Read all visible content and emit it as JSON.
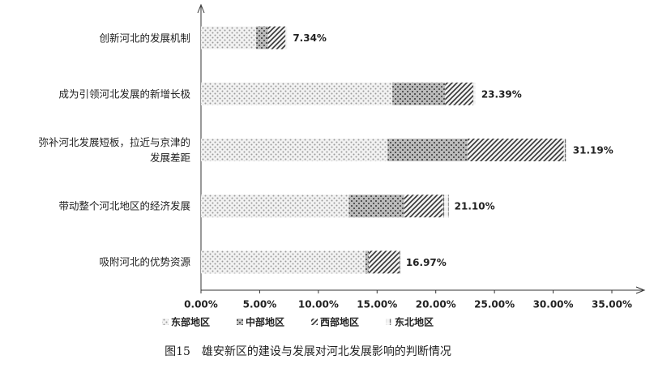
{
  "chart_data": {
    "type": "stacked_barh",
    "caption": "图15　雄安新区的建设与发展对河北发展影响的判断情况",
    "categories": [
      "创新河北的发展机制",
      "成为引领河北发展的新增长极",
      "弥补河北发展短板，拉近与京津的\n发展差距",
      "带动整个河北地区的经济发展",
      "吸附河北的优势资源"
    ],
    "series": [
      {
        "name": "东部地区",
        "color": "#9a9a9a",
        "pattern": "dots",
        "values": [
          4.7,
          16.3,
          15.9,
          12.6,
          14.0
        ]
      },
      {
        "name": "中部地区",
        "color": "#555555",
        "pattern": "grid",
        "values": [
          1.0,
          4.5,
          6.8,
          4.7,
          0.3
        ]
      },
      {
        "name": "西部地区",
        "color": "#333333",
        "pattern": "diagonal",
        "values": [
          1.5,
          2.4,
          8.2,
          3.3,
          2.6
        ]
      },
      {
        "name": "东北地区",
        "color": "#666666",
        "pattern": "vlines",
        "values": [
          0.14,
          0.19,
          0.29,
          0.5,
          0.07
        ]
      }
    ],
    "totals": [
      7.34,
      23.39,
      31.19,
      21.1,
      16.97
    ],
    "total_labels": [
      "7.34%",
      "23.39%",
      "31.19%",
      "21.10%",
      "16.97%"
    ],
    "xlim": [
      0,
      35
    ],
    "xticks": [
      {
        "value": 0,
        "label": "0.00%"
      },
      {
        "value": 5,
        "label": "5.00%"
      },
      {
        "value": 10,
        "label": "10.00%"
      },
      {
        "value": 15,
        "label": "15.00%"
      },
      {
        "value": 20,
        "label": "20.00%"
      },
      {
        "value": 25,
        "label": "25.00%"
      },
      {
        "value": 30,
        "label": "30.00%"
      },
      {
        "value": 35,
        "label": "35.00%"
      }
    ],
    "grid": false
  }
}
